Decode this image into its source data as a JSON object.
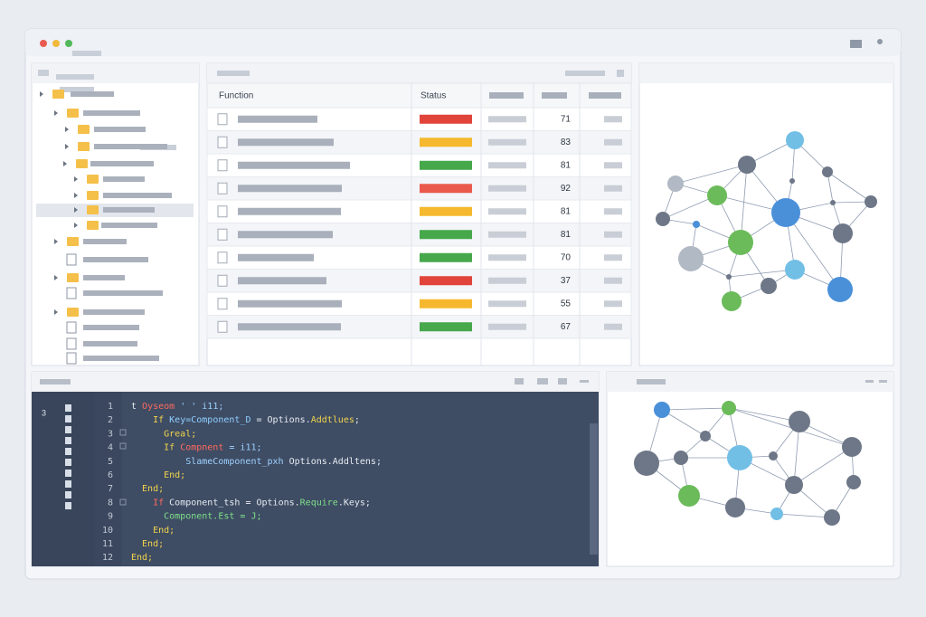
{
  "table": {
    "headers": [
      "Function",
      "Status"
    ],
    "rows": [
      {
        "status_color": "#e0443a",
        "value": 71
      },
      {
        "status_color": "#f5b82e",
        "value": 83
      },
      {
        "status_color": "#46a84b",
        "value": 81
      },
      {
        "status_color": "#ea5a4c",
        "value": 92
      },
      {
        "status_color": "#f5b82e",
        "value": 81
      },
      {
        "status_color": "#46a84b",
        "value": 81
      },
      {
        "status_color": "#46a84b",
        "value": 70
      },
      {
        "status_color": "#e0443a",
        "value": 37
      },
      {
        "status_color": "#f5b82e",
        "value": 55
      },
      {
        "status_color": "#46a84b",
        "value": 67
      }
    ]
  },
  "code": {
    "gutter_mark": "3",
    "lines": [
      {
        "num": "1",
        "tokens": [
          {
            "text": "t ",
            "color": "#e8ecf2"
          },
          {
            "text": "Oyseom",
            "color": "#ff6b5e"
          },
          {
            "text": " ' ' i11;",
            "color": "#9ed2ff"
          }
        ]
      },
      {
        "num": "2",
        "tokens": [
          {
            "text": "    If ",
            "color": "#f2d44b"
          },
          {
            "text": "Key=Component_D",
            "color": "#8fd0ff"
          },
          {
            "text": " = Options.",
            "color": "#e8ecf2"
          },
          {
            "text": "Addtlues",
            "color": "#f2d44b"
          },
          {
            "text": ";",
            "color": "#e8ecf2"
          }
        ]
      },
      {
        "num": "3",
        "tokens": [
          {
            "text": "      Greal;",
            "color": "#f2d44b"
          }
        ]
      },
      {
        "num": "4",
        "tokens": [
          {
            "text": "      If ",
            "color": "#f2d44b"
          },
          {
            "text": "Compnent",
            "color": "#ff6b5e"
          },
          {
            "text": " = i11;",
            "color": "#9ed2ff"
          }
        ]
      },
      {
        "num": "5",
        "tokens": [
          {
            "text": "          SlameComponent_pxh ",
            "color": "#9ed2ff"
          },
          {
            "text": "Options.Addltens;",
            "color": "#e8ecf2"
          }
        ]
      },
      {
        "num": "6",
        "tokens": [
          {
            "text": "      End;",
            "color": "#f2d44b"
          }
        ]
      },
      {
        "num": "7",
        "tokens": [
          {
            "text": "  End;",
            "color": "#f2d44b"
          }
        ]
      },
      {
        "num": "8",
        "tokens": [
          {
            "text": "    If ",
            "color": "#ff6b5e"
          },
          {
            "text": "Component_tsh = Options.",
            "color": "#e8ecf2"
          },
          {
            "text": "Require",
            "color": "#7fe08a"
          },
          {
            "text": ".Keys;",
            "color": "#e8ecf2"
          }
        ]
      },
      {
        "num": "9",
        "tokens": [
          {
            "text": "      Component.Est = J;",
            "color": "#7fe08a"
          }
        ]
      },
      {
        "num": "10",
        "tokens": [
          {
            "text": "    End;",
            "color": "#f2d44b"
          }
        ]
      },
      {
        "num": "11",
        "tokens": [
          {
            "text": "  End;",
            "color": "#f2d44b"
          }
        ]
      },
      {
        "num": "12",
        "tokens": [
          {
            "text": "End;",
            "color": "#f2d44b"
          }
        ]
      }
    ]
  }
}
